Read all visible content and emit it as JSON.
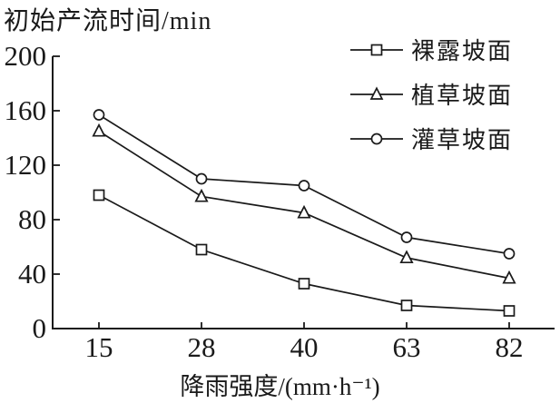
{
  "chart_data": {
    "type": "line",
    "title": "",
    "ylabel": "初始产流时间/min",
    "xlabel": "降雨强度/(mm·h⁻¹)",
    "categories": [
      15,
      28,
      40,
      63,
      82
    ],
    "yticks": [
      0,
      40,
      80,
      120,
      160,
      200
    ],
    "ylim": [
      0,
      200
    ],
    "grid": false,
    "legend_position": "top-right",
    "line_color": "#1a1a1a",
    "marker_fill": "#ffffff",
    "background_color": "#ffffff",
    "series": [
      {
        "name": "裸露坡面",
        "marker": "square",
        "values": [
          98,
          58,
          33,
          17,
          13
        ]
      },
      {
        "name": "植草坡面",
        "marker": "triangle",
        "values": [
          145,
          97,
          85,
          52,
          37
        ]
      },
      {
        "name": "灌草坡面",
        "marker": "circle",
        "values": [
          157,
          110,
          105,
          67,
          55
        ]
      }
    ]
  }
}
